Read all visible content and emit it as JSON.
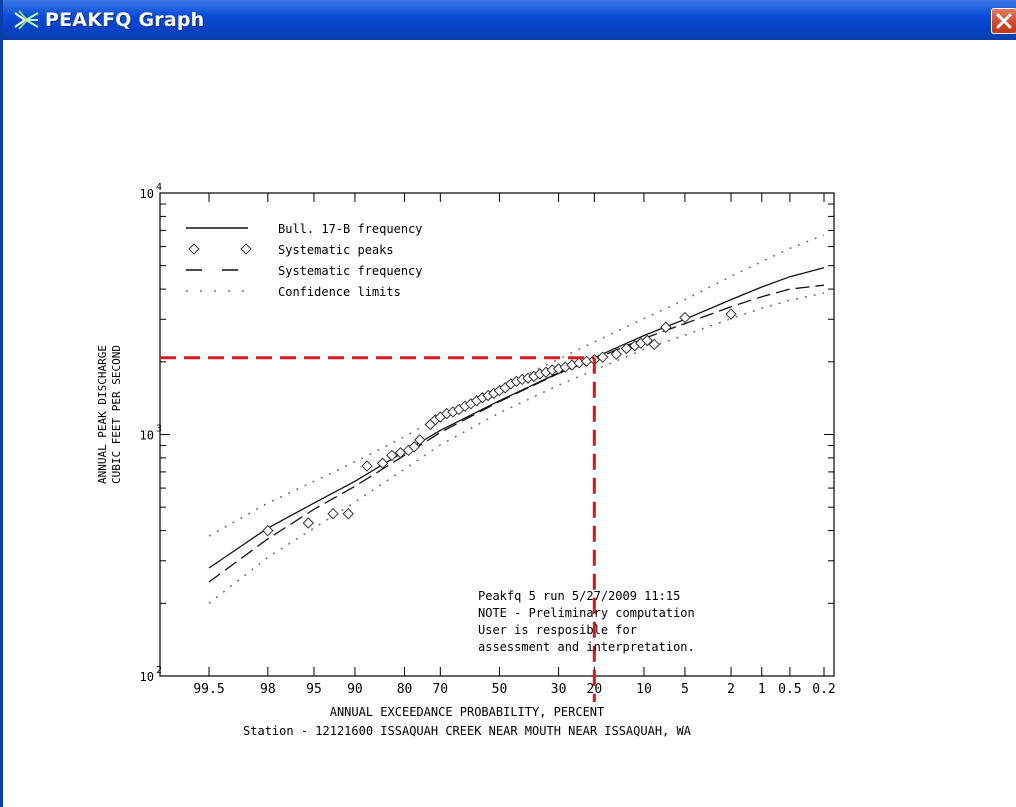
{
  "window": {
    "title": "PEAKFQ Graph",
    "icon": "peakfq-app-icon",
    "close_icon": "close-icon",
    "titlebar_color": "#0a4bd6",
    "close_color": "#d2472a"
  },
  "chart_data": {
    "type": "scatter",
    "subtitle": "",
    "xlabel": "ANNUAL EXCEEDANCE PROBABILITY, PERCENT",
    "ylabel": [
      "ANNUAL PEAK DISCHARGE",
      "CUBIC FEET PER SECOND"
    ],
    "caption": "Station - 12121600  ISSAQUAH CREEK NEAR MOUTH NEAR ISSAQUAH, WA",
    "x_axis": {
      "scale": "normal-probability-reversed",
      "tick_labels": [
        "99.5",
        "98",
        "95",
        "90",
        "80",
        "70",
        "50",
        "30",
        "20",
        "10",
        "5",
        "2",
        "1",
        "0.5",
        "0.2"
      ],
      "xlim": [
        99.5,
        0.2
      ]
    },
    "y_axis": {
      "scale": "log",
      "ylim": [
        100,
        10000
      ],
      "tick_labels": [
        {
          "base": "10",
          "exp": "4",
          "value": 10000
        },
        {
          "base": "10",
          "exp": "3",
          "value": 1000
        },
        {
          "base": "10",
          "exp": "2",
          "value": 100
        }
      ]
    },
    "grid": false,
    "legend_position": "top-left",
    "legend": [
      {
        "label": "Bull. 17-B frequency",
        "style": "solid"
      },
      {
        "label": "Systematic peaks",
        "style": "diamond"
      },
      {
        "label": "Systematic frequency",
        "style": "dashed"
      },
      {
        "label": "Confidence limits",
        "style": "dotted"
      }
    ],
    "series": [
      {
        "name": "Bull. 17-B frequency",
        "style": "solid",
        "points": [
          [
            99.5,
            280
          ],
          [
            98,
            410
          ],
          [
            95,
            520
          ],
          [
            90,
            640
          ],
          [
            80,
            850
          ],
          [
            70,
            1040
          ],
          [
            50,
            1380
          ],
          [
            30,
            1800
          ],
          [
            20,
            2080
          ],
          [
            10,
            2570
          ],
          [
            5,
            3000
          ],
          [
            2,
            3620
          ],
          [
            1,
            4080
          ],
          [
            0.5,
            4500
          ],
          [
            0.2,
            4900
          ]
        ]
      },
      {
        "name": "Systematic frequency",
        "style": "dashed",
        "points": [
          [
            99.5,
            245
          ],
          [
            98,
            370
          ],
          [
            95,
            490
          ],
          [
            90,
            610
          ],
          [
            80,
            820
          ],
          [
            70,
            1020
          ],
          [
            50,
            1370
          ],
          [
            30,
            1790
          ],
          [
            20,
            2050
          ],
          [
            10,
            2500
          ],
          [
            5,
            2880
          ],
          [
            2,
            3380
          ],
          [
            1,
            3720
          ],
          [
            0.5,
            4000
          ],
          [
            0.2,
            4150
          ]
        ]
      },
      {
        "name": "Confidence limits (upper)",
        "style": "dotted",
        "points": [
          [
            99.5,
            380
          ],
          [
            98,
            520
          ],
          [
            95,
            640
          ],
          [
            90,
            770
          ],
          [
            80,
            980
          ],
          [
            70,
            1190
          ],
          [
            50,
            1570
          ],
          [
            30,
            2050
          ],
          [
            20,
            2420
          ],
          [
            10,
            3020
          ],
          [
            5,
            3620
          ],
          [
            2,
            4520
          ],
          [
            1,
            5200
          ],
          [
            0.5,
            5900
          ],
          [
            0.2,
            6700
          ]
        ]
      },
      {
        "name": "Confidence limits (lower)",
        "style": "dotted",
        "points": [
          [
            99.5,
            200
          ],
          [
            98,
            310
          ],
          [
            95,
            410
          ],
          [
            90,
            525
          ],
          [
            80,
            720
          ],
          [
            70,
            905
          ],
          [
            50,
            1230
          ],
          [
            30,
            1600
          ],
          [
            20,
            1850
          ],
          [
            10,
            2250
          ],
          [
            5,
            2580
          ],
          [
            2,
            3020
          ],
          [
            1,
            3330
          ],
          [
            0.5,
            3600
          ],
          [
            0.2,
            3850
          ]
        ]
      },
      {
        "name": "Systematic peaks",
        "style": "diamond",
        "points": [
          [
            98,
            400
          ],
          [
            95.5,
            430
          ],
          [
            93,
            470
          ],
          [
            91,
            470
          ],
          [
            88,
            740
          ],
          [
            85,
            760
          ],
          [
            83,
            820
          ],
          [
            81,
            840
          ],
          [
            79,
            860
          ],
          [
            77.5,
            890
          ],
          [
            76,
            950
          ],
          [
            73,
            1100
          ],
          [
            71.5,
            1150
          ],
          [
            70,
            1180
          ],
          [
            68,
            1220
          ],
          [
            66,
            1240
          ],
          [
            64,
            1270
          ],
          [
            62,
            1310
          ],
          [
            60,
            1340
          ],
          [
            58,
            1380
          ],
          [
            56,
            1420
          ],
          [
            54,
            1450
          ],
          [
            52,
            1480
          ],
          [
            50,
            1520
          ],
          [
            48,
            1560
          ],
          [
            46,
            1620
          ],
          [
            44,
            1660
          ],
          [
            42,
            1690
          ],
          [
            40,
            1710
          ],
          [
            38,
            1740
          ],
          [
            36,
            1780
          ],
          [
            34,
            1810
          ],
          [
            32,
            1850
          ],
          [
            30,
            1870
          ],
          [
            28,
            1900
          ],
          [
            26,
            1940
          ],
          [
            24,
            1980
          ],
          [
            22,
            2010
          ],
          [
            20,
            2040
          ],
          [
            18,
            2090
          ],
          [
            15,
            2150
          ],
          [
            13,
            2270
          ],
          [
            11.5,
            2330
          ],
          [
            10.5,
            2390
          ],
          [
            9.5,
            2450
          ],
          [
            8.5,
            2360
          ],
          [
            7,
            2780
          ],
          [
            5,
            3050
          ],
          [
            2,
            3150
          ]
        ]
      }
    ],
    "reference_lines": {
      "style": "dashed",
      "color": "#cc1f1f",
      "discharge": 2080,
      "exceedance_percent": 20
    },
    "annotation": [
      "Peakfq 5 run 5/27/2009 11:15",
      "NOTE - Preliminary computation",
      "User is resposible for",
      "assessment and interpretation."
    ]
  }
}
